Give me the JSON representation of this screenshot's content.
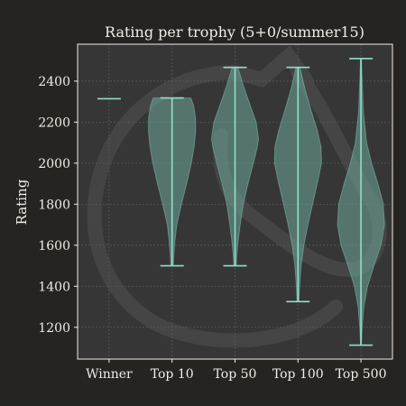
{
  "chart_data": {
    "type": "violin",
    "title": "Rating per trophy (5+0/summer15)",
    "xlabel": "",
    "ylabel": "Rating",
    "ylim": [
      1045,
      2580
    ],
    "yticks": [
      1200,
      1400,
      1600,
      1800,
      2000,
      2200,
      2400
    ],
    "grid": true,
    "categories": [
      "Winner",
      "Top 10",
      "Top 50",
      "Top 100",
      "Top 500"
    ],
    "series": [
      {
        "name": "Winner",
        "min": 2314,
        "max": 2314,
        "profile": []
      },
      {
        "name": "Top 10",
        "min": 1500,
        "max": 2318,
        "profile": [
          [
            1500,
            0.05
          ],
          [
            1560,
            0.08
          ],
          [
            1620,
            0.12
          ],
          [
            1700,
            0.2
          ],
          [
            1800,
            0.4
          ],
          [
            1900,
            0.62
          ],
          [
            2000,
            0.82
          ],
          [
            2080,
            0.94
          ],
          [
            2150,
            1.0
          ],
          [
            2220,
            1.0
          ],
          [
            2280,
            0.92
          ],
          [
            2318,
            0.8
          ]
        ]
      },
      {
        "name": "Top 50",
        "min": 1500,
        "max": 2467,
        "profile": [
          [
            1500,
            0.05
          ],
          [
            1560,
            0.08
          ],
          [
            1620,
            0.13
          ],
          [
            1700,
            0.22
          ],
          [
            1800,
            0.35
          ],
          [
            1900,
            0.55
          ],
          [
            2000,
            0.78
          ],
          [
            2080,
            0.95
          ],
          [
            2120,
            1.0
          ],
          [
            2200,
            0.9
          ],
          [
            2280,
            0.65
          ],
          [
            2380,
            0.35
          ],
          [
            2467,
            0.12
          ]
        ]
      },
      {
        "name": "Top 100",
        "min": 1325,
        "max": 2467,
        "profile": [
          [
            1325,
            0.04
          ],
          [
            1400,
            0.07
          ],
          [
            1500,
            0.13
          ],
          [
            1600,
            0.25
          ],
          [
            1700,
            0.42
          ],
          [
            1800,
            0.62
          ],
          [
            1900,
            0.82
          ],
          [
            2000,
            1.0
          ],
          [
            2080,
            0.98
          ],
          [
            2160,
            0.82
          ],
          [
            2260,
            0.55
          ],
          [
            2360,
            0.3
          ],
          [
            2467,
            0.08
          ]
        ]
      },
      {
        "name": "Top 500",
        "min": 1113,
        "max": 2510,
        "profile": [
          [
            1113,
            0.02
          ],
          [
            1200,
            0.05
          ],
          [
            1300,
            0.12
          ],
          [
            1400,
            0.28
          ],
          [
            1500,
            0.55
          ],
          [
            1600,
            0.85
          ],
          [
            1700,
            1.0
          ],
          [
            1800,
            0.95
          ],
          [
            1900,
            0.72
          ],
          [
            2000,
            0.45
          ],
          [
            2100,
            0.24
          ],
          [
            2250,
            0.1
          ],
          [
            2400,
            0.05
          ],
          [
            2510,
            0.02
          ]
        ]
      }
    ],
    "colors": {
      "background": "#262421",
      "plot": "#363636",
      "violin": "#6fa89a",
      "line": "#8fe0cc",
      "grid": "#5a5a5a",
      "text": "#f0ede8",
      "watermark": "#4a4a4a"
    }
  }
}
